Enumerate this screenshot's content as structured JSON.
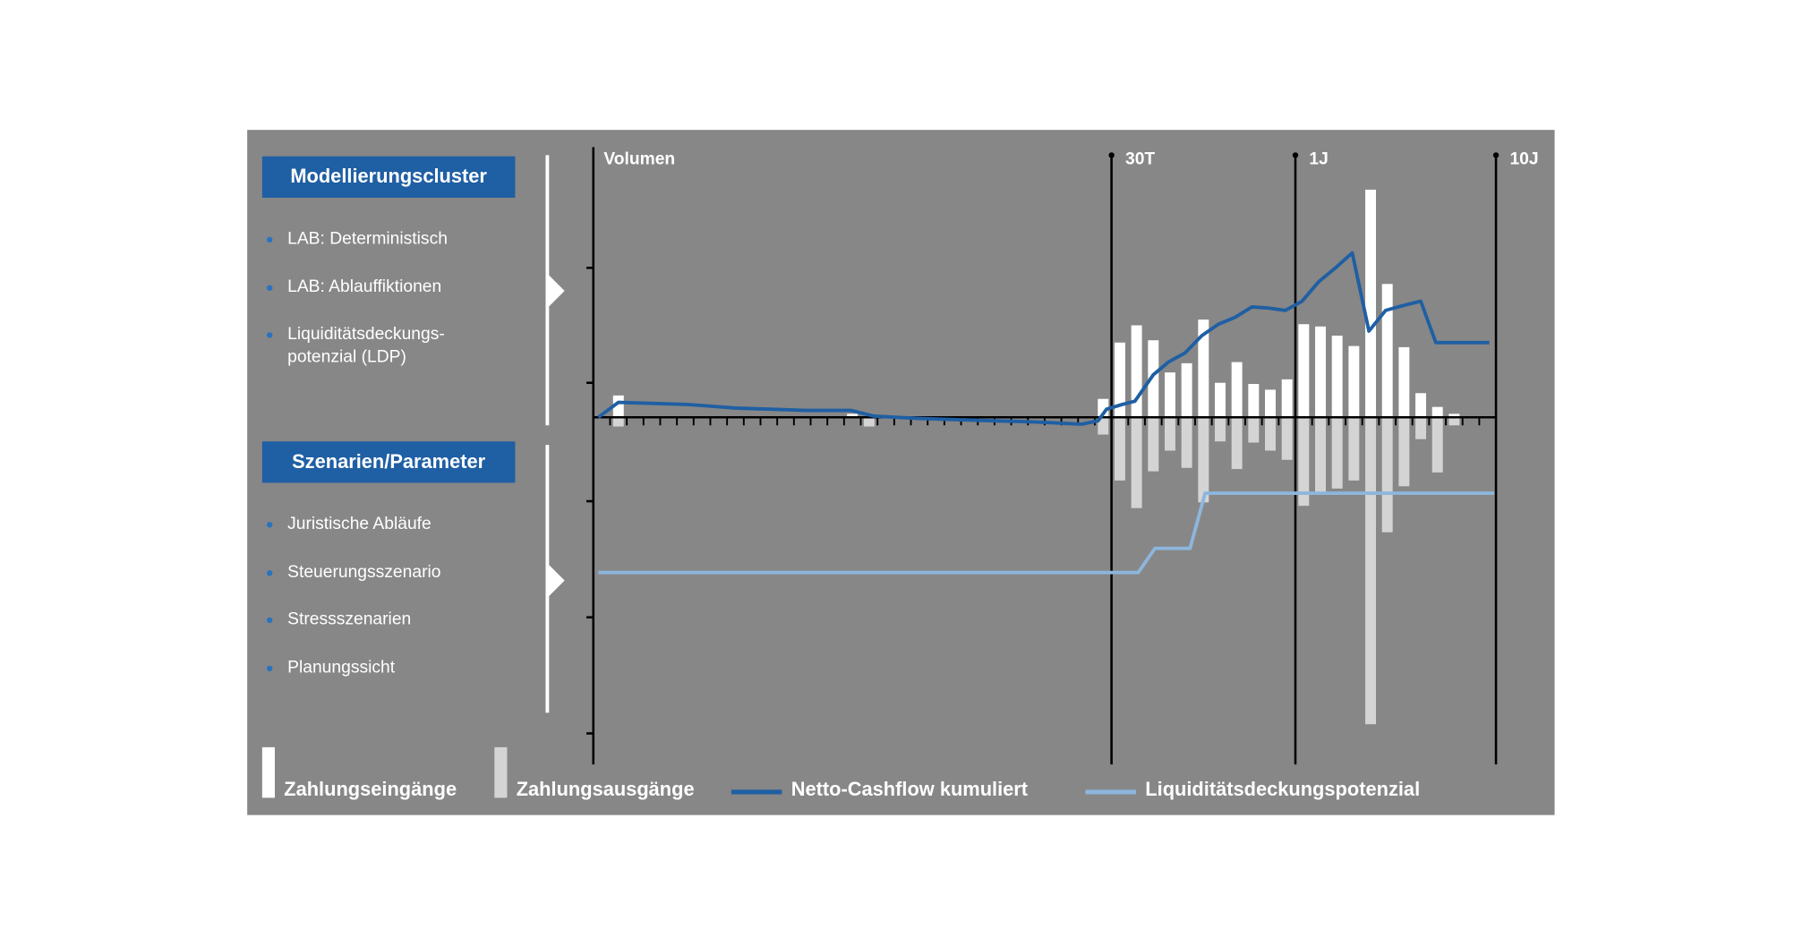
{
  "panel": {
    "sections": [
      {
        "title": "Modellierungscluster",
        "items": [
          "LAB: Deterministisch",
          "LAB: Ablauffiktionen",
          "Liquiditätsdeckungs-\npotenzial (LDP)"
        ]
      },
      {
        "title": "Szenarien/Parameter",
        "items": [
          "Juristische Abläufe",
          "Steuerungsszenario",
          "Stressszenarien",
          "Planungssicht"
        ]
      }
    ]
  },
  "chart_data": {
    "type": "bar",
    "y_label": "Volumen",
    "x": [
      0.5,
      1.5,
      2.5,
      3.5,
      4.5,
      5.5,
      6.5,
      7.5,
      8.5,
      9.5,
      10.5,
      11.5,
      12.5,
      13.5,
      14.5,
      15.5,
      16.5,
      17.5,
      18.5,
      19.5,
      20.5,
      21.5,
      22.5,
      23.5,
      24.5,
      25.5,
      26.5,
      27.5,
      28.5,
      29.5,
      30.5,
      31.5,
      32.5,
      33.5,
      34.5,
      35.5,
      36.5,
      37.5,
      38.5,
      39.5,
      40.5,
      41.5,
      42.5,
      43.5,
      44.5,
      45.5,
      46.5,
      47.5,
      48.5,
      49.5,
      50.5,
      51.5,
      52.5,
      53.5
    ],
    "xlim": [
      0,
      54
    ],
    "xticks": [
      1,
      2,
      3,
      4,
      5,
      6,
      7,
      8,
      9,
      10,
      11,
      12,
      13,
      14,
      15,
      16,
      17,
      18,
      19,
      20,
      21,
      22,
      23,
      24,
      25,
      26,
      27,
      28,
      29,
      30,
      31,
      32,
      33,
      34,
      35,
      36,
      37,
      38,
      39,
      40,
      41,
      42,
      43,
      44,
      45,
      46,
      47,
      48,
      49,
      50,
      51,
      52,
      53
    ],
    "ylim": [
      -302,
      235
    ],
    "yticks": [
      130,
      30,
      -73,
      -174,
      -275
    ],
    "markers": [
      {
        "value": 31,
        "label": "30T"
      },
      {
        "value": 42,
        "label": "1J"
      },
      {
        "value": 54,
        "label": "10J"
      }
    ],
    "series": [
      {
        "name": "Zahlungseingänge",
        "kind": "bar",
        "color": "#ffffff",
        "values": [
          null,
          19,
          null,
          null,
          null,
          null,
          null,
          null,
          null,
          null,
          null,
          null,
          null,
          null,
          null,
          3,
          null,
          null,
          null,
          null,
          null,
          null,
          null,
          null,
          null,
          null,
          null,
          null,
          null,
          null,
          16,
          65,
          80,
          67,
          39,
          47,
          85,
          30,
          48,
          29,
          24,
          33,
          81,
          79,
          71,
          62,
          198,
          116,
          61,
          21,
          9,
          3,
          null,
          null
        ]
      },
      {
        "name": "Zahlungsausgänge",
        "kind": "bar",
        "color": "#d4d4d4",
        "values": [
          null,
          -8,
          null,
          null,
          null,
          null,
          null,
          null,
          null,
          null,
          null,
          null,
          null,
          null,
          null,
          null,
          -8,
          null,
          null,
          null,
          null,
          null,
          null,
          null,
          null,
          null,
          null,
          null,
          null,
          null,
          -15,
          -55,
          -79,
          -47,
          -29,
          -44,
          -74,
          -21,
          -45,
          -22,
          -29,
          -37,
          -77,
          -65,
          -62,
          -55,
          -267,
          -100,
          -60,
          -19,
          -48,
          -7,
          null,
          null
        ]
      },
      {
        "name": "Netto-Cashflow kumuliert",
        "kind": "line",
        "color": "#1f5fa3",
        "x": [
          0.3,
          1.5,
          3.7,
          5.8,
          8.5,
          12.7,
          15.4,
          16.8,
          19.5,
          23.7,
          26.4,
          29.2,
          30.2,
          30.7,
          31.6,
          32.4,
          33.5,
          34.4,
          35.4,
          36.4,
          37.4,
          38.4,
          39.4,
          40.4,
          41.4,
          42.4,
          43.4,
          44.4,
          45.4,
          46.4,
          47.4,
          48.4,
          49.5,
          50.4,
          53.6
        ],
        "values": [
          0,
          13,
          12,
          11,
          8,
          6,
          6,
          1,
          -1,
          -3,
          -4,
          -6,
          -3,
          7,
          11,
          14,
          37,
          48,
          56,
          71,
          81,
          87,
          96,
          95,
          93,
          101,
          118,
          130,
          143,
          75,
          93,
          97,
          101,
          65,
          65
        ]
      },
      {
        "name": "Liquiditätsdeckungspotenzial",
        "kind": "line",
        "color": "#8db6dc",
        "x": [
          0.3,
          32.6,
          33.6,
          35.7,
          36.6,
          53.9
        ],
        "values": [
          -135,
          -135,
          -114,
          -114,
          -66,
          -66
        ]
      }
    ]
  }
}
